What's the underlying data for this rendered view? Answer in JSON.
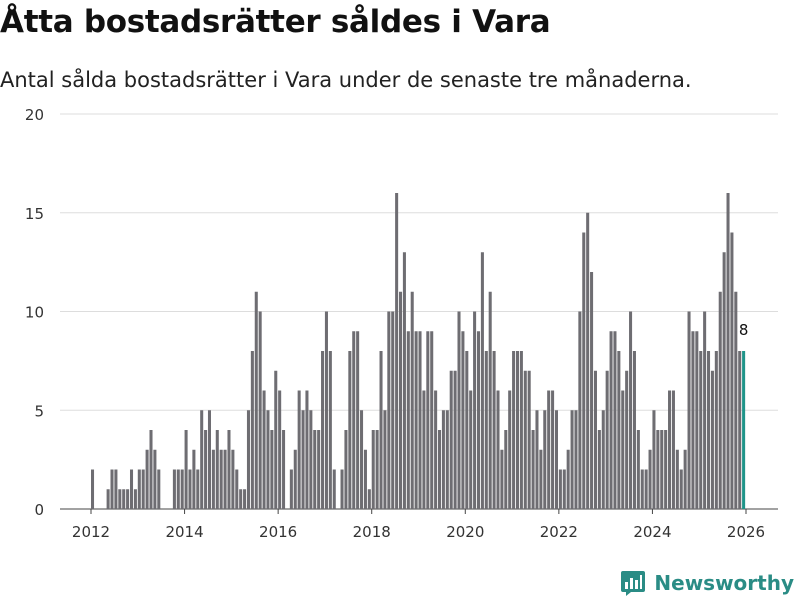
{
  "header": {
    "title": "Åtta bostadsrätter såldes i Vara",
    "subtitle": "Antal sålda bostadsrätter i Vara under de senaste tre månaderna."
  },
  "brand": {
    "name": "Newsworthy",
    "icon": "newsworthy-logo-icon",
    "color": "#2a8c85"
  },
  "colors": {
    "bar": "#6e6d72",
    "highlight": "#1f9489",
    "grid": "#dddddd",
    "axis": "#444444"
  },
  "chart_data": {
    "type": "bar",
    "title": "Åtta bostadsrätter såldes i Vara",
    "subtitle": "Antal sålda bostadsrätter i Vara under de senaste tre månaderna.",
    "xlabel": "",
    "ylabel": "",
    "ylim": [
      0,
      20
    ],
    "yticks": [
      "0",
      "5",
      "10",
      "15",
      "20"
    ],
    "xticks": [
      "2012",
      "2014",
      "2016",
      "2018",
      "2020",
      "2022",
      "2024",
      "2026"
    ],
    "x_start": "2012-01",
    "x_end": "2026-02",
    "grid": true,
    "highlight_last": true,
    "last_label": "8",
    "series": [
      {
        "name": "Antal sålda bostadsrätter",
        "values": [
          2,
          0,
          0,
          0,
          1,
          2,
          2,
          1,
          1,
          1,
          2,
          1,
          2,
          2,
          3,
          4,
          3,
          2,
          0,
          0,
          0,
          2,
          2,
          2,
          4,
          2,
          3,
          2,
          5,
          4,
          5,
          3,
          4,
          3,
          3,
          4,
          3,
          2,
          1,
          1,
          5,
          8,
          11,
          10,
          6,
          5,
          4,
          7,
          6,
          4,
          0,
          2,
          3,
          6,
          5,
          6,
          5,
          4,
          4,
          8,
          10,
          8,
          2,
          0,
          2,
          4,
          8,
          9,
          9,
          5,
          3,
          1,
          4,
          4,
          8,
          5,
          10,
          10,
          16,
          11,
          13,
          9,
          11,
          9,
          9,
          6,
          9,
          9,
          6,
          4,
          5,
          5,
          7,
          7,
          10,
          9,
          8,
          6,
          10,
          9,
          13,
          8,
          11,
          8,
          6,
          3,
          4,
          6,
          8,
          8,
          8,
          7,
          7,
          4,
          5,
          3,
          5,
          6,
          6,
          5,
          2,
          2,
          3,
          5,
          5,
          10,
          14,
          15,
          12,
          7,
          4,
          5,
          7,
          9,
          9,
          8,
          6,
          7,
          10,
          8,
          4,
          2,
          2,
          3,
          5,
          4,
          4,
          4,
          6,
          6,
          3,
          2,
          3,
          10,
          9,
          9,
          8,
          10,
          8,
          7,
          8,
          11,
          13,
          16,
          14,
          11,
          8,
          8
        ]
      }
    ]
  }
}
